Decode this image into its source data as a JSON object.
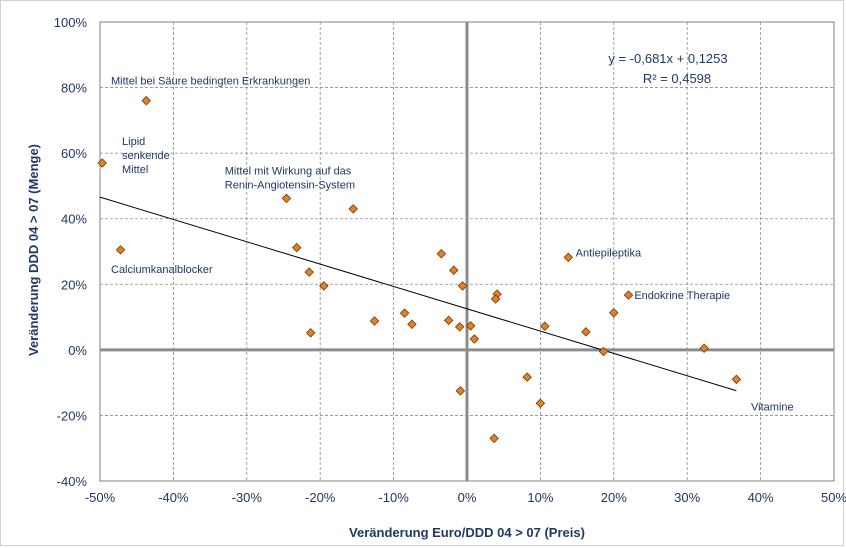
{
  "chart_data": {
    "type": "scatter",
    "xlabel": "Veränderung Euro/DDD 04 > 07 (Preis)",
    "ylabel": "Veränderung DDD 04 > 07 (Menge)",
    "xlim": [
      -0.5,
      0.5
    ],
    "ylim": [
      -0.4,
      1.0
    ],
    "x_ticks": [
      -0.5,
      -0.4,
      -0.3,
      -0.2,
      -0.1,
      0.0,
      0.1,
      0.2,
      0.3,
      0.4,
      0.5
    ],
    "x_tick_labels": [
      "-50%",
      "-40%",
      "-30%",
      "-20%",
      "-10%",
      "0%",
      "10%",
      "20%",
      "30%",
      "40%",
      "50%"
    ],
    "y_ticks": [
      -0.4,
      -0.2,
      0.0,
      0.2,
      0.4,
      0.6,
      0.8,
      1.0
    ],
    "y_tick_labels": [
      "-40%",
      "-20%",
      "0%",
      "20%",
      "40%",
      "60%",
      "80%",
      "100%"
    ],
    "grid": true,
    "marker_color": "#e0802a",
    "marker_edge": "#7a3a00",
    "axis_color": "#8c8c8c",
    "points": [
      {
        "x": -0.497,
        "y": 0.57
      },
      {
        "x": -0.437,
        "y": 0.76
      },
      {
        "x": -0.472,
        "y": 0.305
      },
      {
        "x": -0.246,
        "y": 0.462
      },
      {
        "x": -0.155,
        "y": 0.43
      },
      {
        "x": -0.232,
        "y": 0.312
      },
      {
        "x": -0.215,
        "y": 0.237
      },
      {
        "x": -0.195,
        "y": 0.195
      },
      {
        "x": -0.213,
        "y": 0.052
      },
      {
        "x": -0.126,
        "y": 0.088
      },
      {
        "x": -0.085,
        "y": 0.112
      },
      {
        "x": -0.075,
        "y": 0.078
      },
      {
        "x": -0.035,
        "y": 0.293
      },
      {
        "x": -0.018,
        "y": 0.243
      },
      {
        "x": -0.006,
        "y": 0.195
      },
      {
        "x": -0.025,
        "y": 0.09
      },
      {
        "x": -0.01,
        "y": 0.07
      },
      {
        "x": 0.005,
        "y": 0.073
      },
      {
        "x": 0.01,
        "y": 0.033
      },
      {
        "x": -0.009,
        "y": -0.125
      },
      {
        "x": 0.041,
        "y": 0.17
      },
      {
        "x": 0.039,
        "y": 0.155
      },
      {
        "x": 0.037,
        "y": -0.27
      },
      {
        "x": 0.082,
        "y": -0.083
      },
      {
        "x": 0.1,
        "y": -0.163
      },
      {
        "x": 0.106,
        "y": 0.072
      },
      {
        "x": 0.138,
        "y": 0.282
      },
      {
        "x": 0.162,
        "y": 0.055
      },
      {
        "x": 0.186,
        "y": -0.005
      },
      {
        "x": 0.2,
        "y": 0.113
      },
      {
        "x": 0.22,
        "y": 0.167
      },
      {
        "x": 0.323,
        "y": 0.005
      },
      {
        "x": 0.367,
        "y": -0.09
      }
    ],
    "trendline": {
      "slope": -0.681,
      "intercept": 0.1253,
      "x_range": [
        -0.5,
        0.367
      ]
    },
    "equation_line1": "y = -0,681x + 0,1253",
    "equation_line2": "R² = 0,4598",
    "annotations": [
      {
        "lines": [
          "Mittel bei Säure bedingten Erkrankungen"
        ],
        "x": -0.485,
        "y": 0.81
      },
      {
        "lines": [
          "Lipid",
          "senkende",
          "Mittel"
        ],
        "x": -0.47,
        "y": 0.625
      },
      {
        "lines": [
          "Mittel mit Wirkung auf das",
          "Renin-Angiotensin-System"
        ],
        "x": -0.33,
        "y": 0.535
      },
      {
        "lines": [
          "Calciumkanalblocker"
        ],
        "x": -0.485,
        "y": 0.235
      },
      {
        "lines": [
          "Antiepileptika"
        ],
        "x": 0.148,
        "y": 0.285
      },
      {
        "lines": [
          "Endokrine Therapie"
        ],
        "x": 0.228,
        "y": 0.155
      },
      {
        "lines": [
          "Vitamine"
        ],
        "x": 0.387,
        "y": -0.185
      }
    ]
  }
}
